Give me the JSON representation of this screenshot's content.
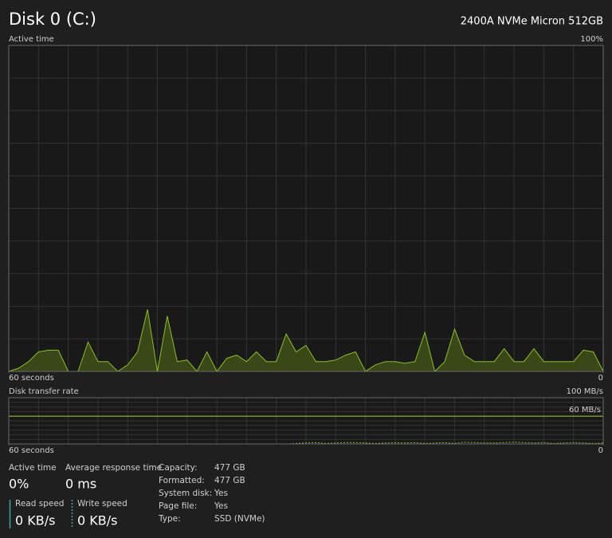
{
  "header": {
    "title": "Disk 0 (C:)",
    "model": "2400A NVMe Micron 512GB"
  },
  "chart_data": [
    {
      "type": "area",
      "title": "Active time",
      "color": "#8cbf26",
      "fill": "#3a4716",
      "ylim": [
        0,
        100
      ],
      "yticks": [
        {
          "value": 100,
          "label": "100%"
        }
      ],
      "xlim": [
        60,
        0
      ],
      "xticks": [
        {
          "value": 60,
          "label": "60 seconds"
        },
        0
      ],
      "values": [
        0,
        1,
        3,
        6,
        6.5,
        6.5,
        0,
        0,
        9,
        3,
        3,
        0,
        2,
        6,
        19,
        0,
        17,
        3,
        3.5,
        0,
        6,
        0,
        4,
        5,
        3,
        6,
        3,
        3,
        11.5,
        6,
        8,
        3,
        3,
        3.5,
        5,
        6,
        0,
        2,
        3,
        3,
        2.5,
        3,
        12,
        0,
        3,
        13,
        5,
        3,
        3,
        3,
        7,
        3,
        3,
        7,
        3,
        3,
        3,
        3,
        6.5,
        6,
        0
      ]
    },
    {
      "type": "line",
      "title": "Disk transfer rate",
      "color": "#8cbf26",
      "ylim": [
        0,
        100
      ],
      "yticks": [
        {
          "value": 100,
          "label": "100 MB/s"
        }
      ],
      "reference": {
        "value": 60,
        "label": "60 MB/s"
      },
      "xlim": [
        60,
        0
      ],
      "xticks": [
        {
          "value": 60,
          "label": "60 seconds"
        },
        0
      ],
      "values": [
        0,
        0,
        0,
        0,
        0,
        0,
        0,
        0,
        0,
        0,
        0,
        0,
        0,
        0,
        0,
        0,
        0,
        0,
        0,
        0,
        0,
        0,
        0,
        0,
        0,
        0,
        0,
        0,
        0,
        1,
        2,
        3,
        1,
        2,
        3,
        3,
        2,
        1,
        2,
        3,
        2,
        3,
        1,
        2,
        3,
        1,
        4,
        3,
        2,
        2,
        3,
        4,
        3,
        2,
        3,
        1,
        2,
        3,
        2,
        1,
        2
      ]
    }
  ],
  "stats": [
    {
      "label": "Active time",
      "value": "0%"
    },
    {
      "label": "Average response time",
      "value": "0 ms"
    }
  ],
  "speeds": [
    {
      "label": "Read speed",
      "value": "0 KB/s"
    },
    {
      "label": "Write speed",
      "value": "0 KB/s"
    }
  ],
  "properties": [
    [
      "Capacity:",
      "477 GB"
    ],
    [
      "Formatted:",
      "477 GB"
    ],
    [
      "System disk:",
      "Yes"
    ],
    [
      "Page file:",
      "Yes"
    ],
    [
      "Type:",
      "SSD (NVMe)"
    ]
  ]
}
